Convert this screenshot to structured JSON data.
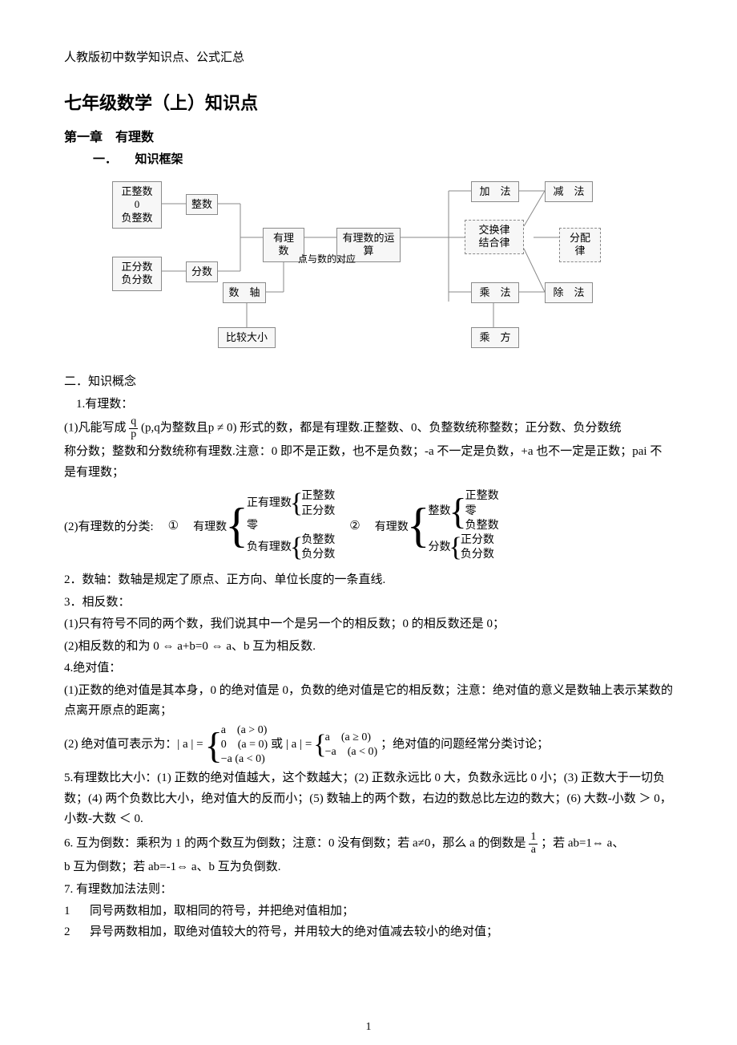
{
  "topNote": "人教版初中数学知识点、公式汇总",
  "title": "七年级数学（上）知识点",
  "chapter": "第一章　有理数",
  "sec1": "一．　　知识框架",
  "diagram": {
    "b1": "正整数\n0\n负整数",
    "b2": "整数",
    "b3": "正分数\n负分数",
    "b4": "分数",
    "b5": "有理数",
    "b6": "有理数的运算",
    "b7": "点与数的对应",
    "b8": "数　轴",
    "b9": "比较大小",
    "b10": "加　法",
    "b11": "减　法",
    "b12": "交换律\n结合律",
    "b13": "分配律",
    "b14": "乘　法",
    "b15": "除　法",
    "b16": "乘　方"
  },
  "sec2": "二．知识概念",
  "p1": "1.有理数：",
  "p1a_pre": "(1)凡能写成 ",
  "p1a_post": "(p,q为整数且p ≠ 0) 形式的数，都是有理数.正整数、0、负整数统称整数；正分数、负分数统",
  "p1b": "称分数；整数和分数统称有理数.注意：0 即不是正数，也不是负数；-a 不一定是负数，+a 也不一定是正数；pai 不是有理数；",
  "class_label": "(2)有理数的分类:",
  "class_one": "①",
  "class_two": "②",
  "class_root": "有理数",
  "cls": {
    "pos_rational": "正有理数",
    "zero": "零",
    "neg_rational": "负有理数",
    "pos_int": "正整数",
    "pos_frac": "正分数",
    "neg_int": "负整数",
    "neg_frac": "负分数",
    "int": "整数",
    "frac": "分数"
  },
  "p2": "2．数轴：数轴是规定了原点、正方向、单位长度的一条直线.",
  "p3": "3．相反数：",
  "p3a": "(1)只有符号不同的两个数，我们说其中一个是另一个的相反数；0 的相反数还是 0；",
  "p3b": "(2)相反数的和为 0 ⇔ a+b=0 ⇔ a、b 互为相反数.",
  "p4": "4.绝对值：",
  "p4a": "(1)正数的绝对值是其本身，0 的绝对值是 0，负数的绝对值是它的相反数；注意：绝对值的意义是数轴上表示某数的点离开原点的距离；",
  "p4b_pre": "(2) 绝对值可表示为：| a | = ",
  "p4b_mid": " 或 | a | = ",
  "abs1": {
    "r1": "a　(a > 0)",
    "r2": "0　(a = 0)",
    "r3": "−a  (a < 0)"
  },
  "abs2": {
    "r1": "a　(a ≥ 0)",
    "r2": "−a　(a < 0)"
  },
  "p4b_post": "；绝对值的问题经常分类讨论；",
  "p5": "5.有理数比大小：(1) 正数的绝对值越大，这个数越大；(2) 正数永远比 0 大，负数永远比 0 小；(3) 正数大于一切负数；(4) 两个负数比大小，绝对值大的反而小；(5) 数轴上的两个数，右边的数总比左边的数大；(6) 大数-小数 ＞ 0，小数-大数 ＜ 0.",
  "p6_pre": "6. 互为倒数：乘积为 1 的两个数互为倒数；注意：0 没有倒数；若 a≠0，那么 a 的倒数是 ",
  "p6_post": "；若 ab=1⇔ a、",
  "p6b": "b 互为倒数；若 ab=-1⇔ a、b 互为负倒数.",
  "p7": "7. 有理数加法法则：",
  "p7a": "同号两数相加，取相同的符号，并把绝对值相加；",
  "p7b": "异号两数相加，取绝对值较大的符号，并用较大的绝对值减去较小的绝对值；",
  "list1": "1",
  "list2": "2",
  "frac_q": "q",
  "frac_p": "p",
  "frac_1": "1",
  "frac_a": "a",
  "pageNum": "1"
}
